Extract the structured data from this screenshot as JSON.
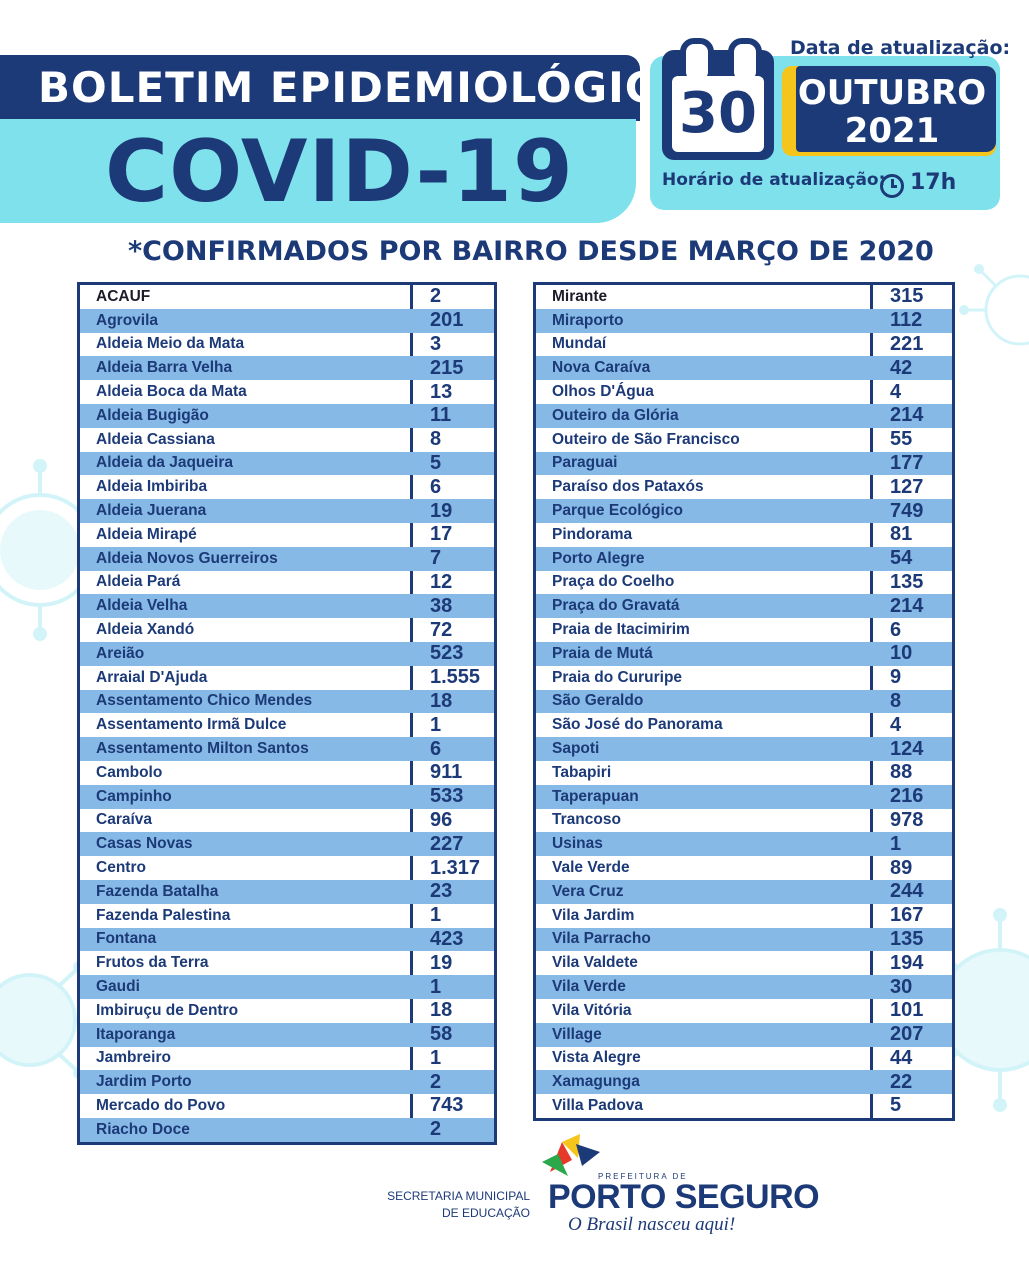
{
  "header": {
    "line1": "BOLETIM EPIDEMIOLÓGICO",
    "line2": "COVID-19"
  },
  "update": {
    "date_label": "Data de atualização:",
    "day": "30",
    "month": "OUTUBRO",
    "year": "2021",
    "time_label": "Horário de atualização:",
    "time": "17h"
  },
  "subtitle": "*CONFIRMADOS POR BAIRRO DESDE MARÇO DE 2020",
  "table_left": [
    {
      "name": "ACAUF",
      "value": "2"
    },
    {
      "name": "Agrovila",
      "value": "201"
    },
    {
      "name": "Aldeia Meio da Mata",
      "value": "3"
    },
    {
      "name": "Aldeia Barra Velha",
      "value": "215"
    },
    {
      "name": "Aldeia Boca da Mata",
      "value": "13"
    },
    {
      "name": "Aldeia Bugigão",
      "value": "11"
    },
    {
      "name": "Aldeia Cassiana",
      "value": "8"
    },
    {
      "name": "Aldeia da Jaqueira",
      "value": "5"
    },
    {
      "name": "Aldeia Imbiriba",
      "value": "6"
    },
    {
      "name": "Aldeia Juerana",
      "value": "19"
    },
    {
      "name": "Aldeia Mirapé",
      "value": "17"
    },
    {
      "name": "Aldeia Novos Guerreiros",
      "value": "7"
    },
    {
      "name": "Aldeia Pará",
      "value": "12"
    },
    {
      "name": "Aldeia Velha",
      "value": "38"
    },
    {
      "name": "Aldeia Xandó",
      "value": "72"
    },
    {
      "name": "Areião",
      "value": "523"
    },
    {
      "name": "Arraial D'Ajuda",
      "value": "1.555"
    },
    {
      "name": "Assentamento Chico Mendes",
      "value": "18"
    },
    {
      "name": "Assentamento Irmã Dulce",
      "value": "1"
    },
    {
      "name": "Assentamento Milton Santos",
      "value": "6"
    },
    {
      "name": "Cambolo",
      "value": "911"
    },
    {
      "name": "Campinho",
      "value": "533"
    },
    {
      "name": "Caraíva",
      "value": "96"
    },
    {
      "name": "Casas Novas",
      "value": "227"
    },
    {
      "name": "Centro",
      "value": "1.317"
    },
    {
      "name": "Fazenda Batalha",
      "value": "23"
    },
    {
      "name": "Fazenda Palestina",
      "value": "1"
    },
    {
      "name": "Fontana",
      "value": "423"
    },
    {
      "name": "Frutos da Terra",
      "value": "19"
    },
    {
      "name": "Gaudi",
      "value": "1"
    },
    {
      "name": "Imbiruçu de Dentro",
      "value": "18"
    },
    {
      "name": "Itaporanga",
      "value": "58"
    },
    {
      "name": "Jambreiro",
      "value": "1"
    },
    {
      "name": "Jardim Porto",
      "value": "2"
    },
    {
      "name": "Mercado do Povo",
      "value": "743"
    },
    {
      "name": "Riacho Doce",
      "value": "2"
    }
  ],
  "table_right": [
    {
      "name": "Mirante",
      "value": "315"
    },
    {
      "name": "Miraporto",
      "value": "112"
    },
    {
      "name": "Mundaí",
      "value": "221"
    },
    {
      "name": "Nova Caraíva",
      "value": "42"
    },
    {
      "name": "Olhos D'Água",
      "value": "4"
    },
    {
      "name": "Outeiro da Glória",
      "value": "214"
    },
    {
      "name": "Outeiro de São Francisco",
      "value": "55"
    },
    {
      "name": "Paraguai",
      "value": "177"
    },
    {
      "name": "Paraíso dos Pataxós",
      "value": "127"
    },
    {
      "name": "Parque Ecológico",
      "value": "749"
    },
    {
      "name": "Pindorama",
      "value": "81"
    },
    {
      "name": "Porto Alegre",
      "value": "54"
    },
    {
      "name": "Praça do Coelho",
      "value": "135"
    },
    {
      "name": "Praça do Gravatá",
      "value": "214"
    },
    {
      "name": "Praia de Itacimirim",
      "value": "6"
    },
    {
      "name": "Praia de Mutá",
      "value": "10"
    },
    {
      "name": "Praia do Cururipe",
      "value": "9"
    },
    {
      "name": "São Geraldo",
      "value": "8"
    },
    {
      "name": "São José do Panorama",
      "value": "4"
    },
    {
      "name": "Sapoti",
      "value": "124"
    },
    {
      "name": "Tabapiri",
      "value": "88"
    },
    {
      "name": "Taperapuan",
      "value": "216"
    },
    {
      "name": "Trancoso",
      "value": "978"
    },
    {
      "name": "Usinas",
      "value": "1"
    },
    {
      "name": "Vale Verde",
      "value": "89"
    },
    {
      "name": "Vera Cruz",
      "value": "244"
    },
    {
      "name": "Vila Jardim",
      "value": "167"
    },
    {
      "name": "Vila Parracho",
      "value": "135"
    },
    {
      "name": "Vila Valdete",
      "value": "194"
    },
    {
      "name": "Vila Verde",
      "value": "30"
    },
    {
      "name": "Vila Vitória",
      "value": "101"
    },
    {
      "name": "Village",
      "value": "207"
    },
    {
      "name": "Vista Alegre",
      "value": "44"
    },
    {
      "name": "Xamagunga",
      "value": "22"
    },
    {
      "name": "Villa Padova",
      "value": "5"
    }
  ],
  "footer": {
    "secretaria_line1": "SECRETARIA MUNICIPAL",
    "secretaria_line2": "DE EDUCAÇÃO",
    "logo_small": "PREFEITURA DE",
    "logo_main": "PORTO SEGURO",
    "slogan": "O Brasil nasceu aqui!"
  },
  "colors": {
    "navy": "#1d3a78",
    "cyan": "#7fe1ec",
    "row_blue": "#86b9e6",
    "yellow": "#f6c51b"
  }
}
